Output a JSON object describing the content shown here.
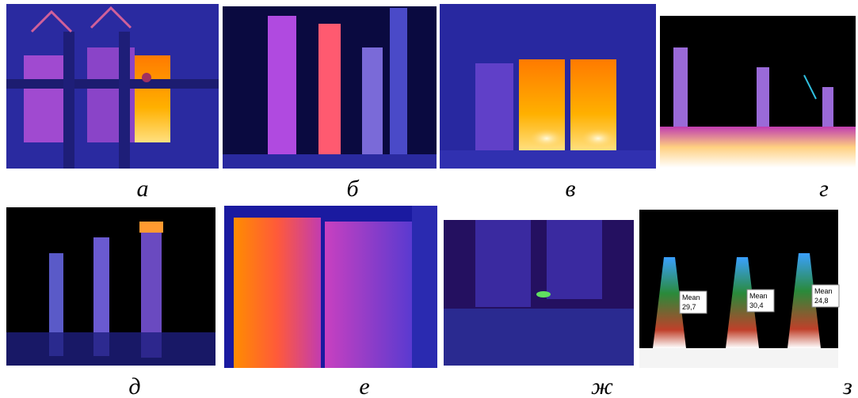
{
  "figure": {
    "panels": [
      {
        "caption": "а"
      },
      {
        "caption": "б"
      },
      {
        "caption": "в"
      },
      {
        "caption": "г"
      },
      {
        "caption": "д"
      },
      {
        "caption": "е"
      },
      {
        "caption": "ж"
      },
      {
        "caption": "з"
      }
    ],
    "measurements": [
      {
        "label": "Mean",
        "value": "29,7"
      },
      {
        "label": "Mean",
        "value": "30,4"
      },
      {
        "label": "Mean",
        "value": "24,8"
      }
    ]
  }
}
